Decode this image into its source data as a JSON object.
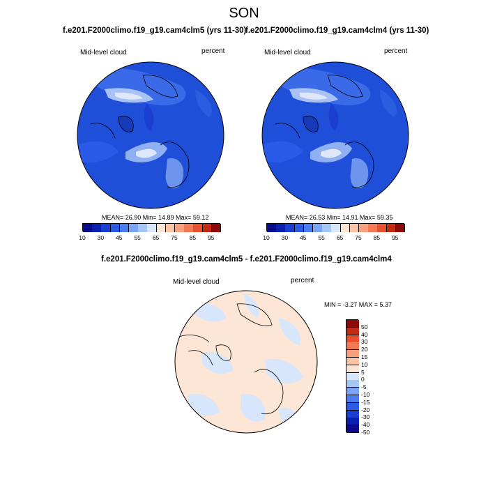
{
  "title": "SON",
  "panels": [
    {
      "title": "f.e201.F2000climo.f19_g19.cam4clm5 (yrs 11-30)",
      "variable": "Mid-level cloud",
      "units": "percent",
      "stats": "MEAN=  26.90  Min=  14.89  Max=  59.12"
    },
    {
      "title": "f.e201.F2000climo.f19_g19.cam4clm4 (yrs 11-30)",
      "variable": "Mid-level cloud",
      "units": "percent",
      "stats": "MEAN=  26.53  Min=  14.91  Max=  59.35"
    }
  ],
  "diff_panel": {
    "title": "f.e201.F2000climo.f19_g19.cam4clm5 - f.e201.F2000climo.f19_g19.cam4clm4",
    "variable": "Mid-level cloud",
    "units": "percent",
    "stats": "MIN =  -3.27 MAX =   5.37"
  },
  "colorbar_main": {
    "colors": [
      "#0a0a8c",
      "#0b1fb0",
      "#1a3fd0",
      "#2a5ae6",
      "#4a7cf0",
      "#7aa4f5",
      "#a7c6f8",
      "#d7e6fb",
      "#fde6d6",
      "#fbc4a6",
      "#f8a07d",
      "#f47a56",
      "#e8502f",
      "#c52a14",
      "#8c0a0a"
    ],
    "labels": [
      "10",
      "30",
      "45",
      "55",
      "65",
      "75",
      "85",
      "95"
    ]
  },
  "colorbar_diff": {
    "colors": [
      "#0a0a8c",
      "#0b1fb0",
      "#1a3fd0",
      "#2a5ae6",
      "#4a7cf0",
      "#7aa4f5",
      "#a7c6f8",
      "#d7e6fb",
      "#fde6d6",
      "#fbc4a6",
      "#f8a07d",
      "#f47a56",
      "#e8502f",
      "#c52a14",
      "#8c0a0a"
    ],
    "labels": [
      "50",
      "40",
      "30",
      "20",
      "15",
      "10",
      "5",
      "0",
      "-5",
      "-10",
      "-15",
      "-20",
      "-30",
      "-40",
      "-50"
    ]
  }
}
